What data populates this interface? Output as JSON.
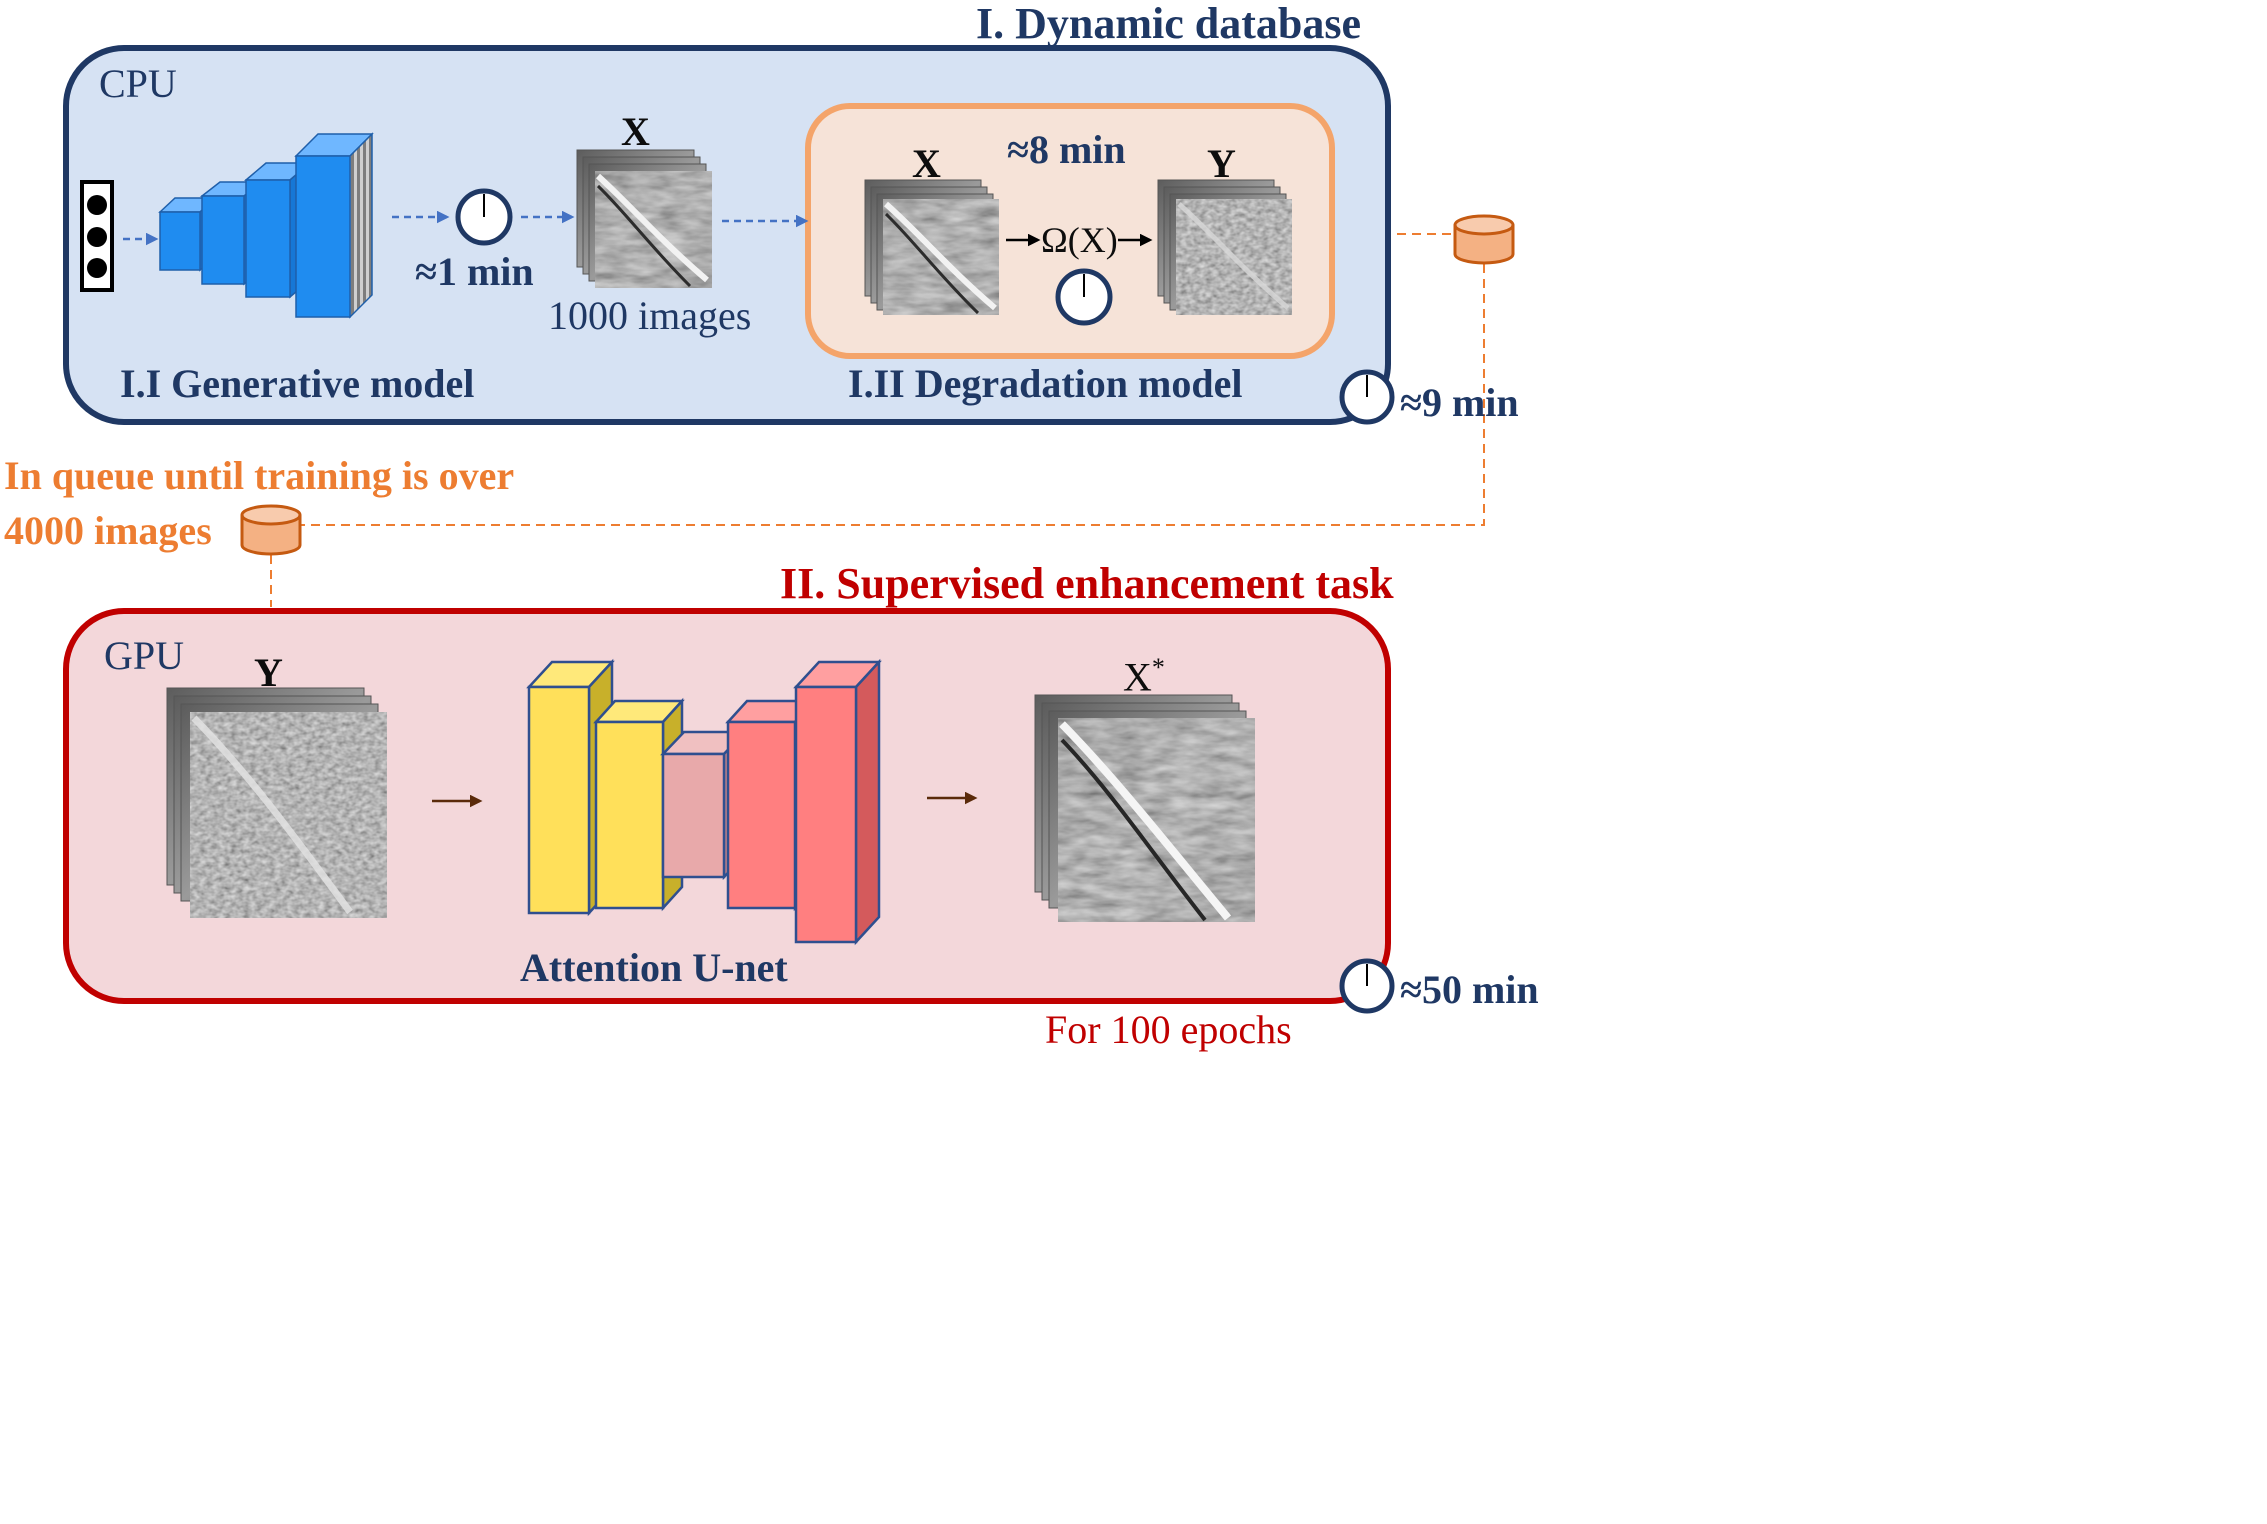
{
  "colors": {
    "navy": "#1f3864",
    "cpu_fill": "#d6e2f3",
    "degradation_fill": "#f6e3d8",
    "degradation_border": "#f4a46a",
    "gpu_fill": "#f3d7da",
    "gpu_border": "#c00000",
    "generator_blue": "#1f8cf0",
    "queue_orange": "#ed7d31",
    "cylinder_fill": "#f4b183",
    "unet_yellow": "#ffe05a",
    "unet_pink": "#e8a9aa",
    "unet_red": "#ff7f80"
  },
  "section1": {
    "title": "I. Dynamic database",
    "device": "CPU",
    "generative_label": "I.I Generative model",
    "degradation_label": "I.II Degradation model",
    "gen_time": "≈1 min",
    "gen_output_symbol": "X",
    "gen_output_count": "1000 images",
    "deg_time": "≈8 min",
    "deg_input_symbol": "X",
    "deg_output_symbol": "Y",
    "operator": "Ω(X)",
    "total_time": "≈9 min"
  },
  "queue": {
    "note": "In queue until training is over",
    "count": "4000 images"
  },
  "section2": {
    "title": "II. Supervised enhancement task",
    "device": "GPU",
    "input_symbol": "Y",
    "network_label": "Attention U-net",
    "output_symbol": "X",
    "output_sup": "*",
    "epochs": "For 100 epochs",
    "total_time": "≈50 min"
  },
  "icons": [
    "latent-vector-icon",
    "generator-network-icon",
    "clock-icon",
    "image-stack-icon",
    "database-icon",
    "unet-icon"
  ]
}
